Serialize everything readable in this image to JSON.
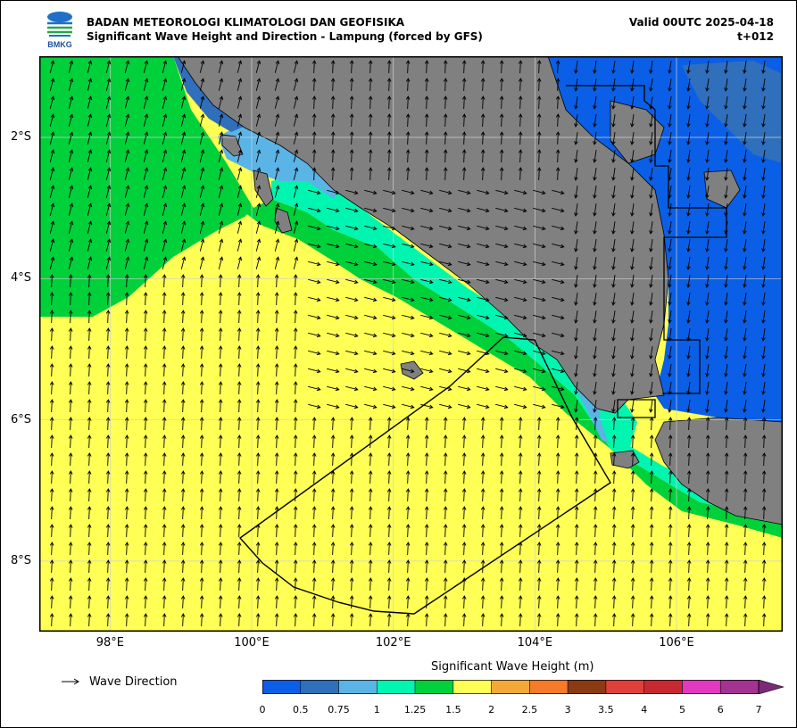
{
  "header": {
    "logo_text": "BMKG",
    "title_line1": "BADAN METEOROLOGI KLIMATOLOGI DAN GEOFISIKA",
    "title_line2": "Significant Wave Height and Direction - Lampung (forced by GFS)",
    "valid_line1": "Valid 00UTC 2025-04-18",
    "valid_line2": "t+012"
  },
  "map": {
    "lon_range": [
      97.0,
      107.5
    ],
    "lat_range": [
      -9.0,
      -0.85
    ],
    "grid": true,
    "land_color": "#808080",
    "x_ticks": [
      {
        "lon": 98,
        "label": "98°E"
      },
      {
        "lon": 100,
        "label": "100°E"
      },
      {
        "lon": 102,
        "label": "102°E"
      },
      {
        "lon": 104,
        "label": "104°E"
      },
      {
        "lon": 106,
        "label": "106°E"
      }
    ],
    "y_ticks": [
      {
        "lat": -2,
        "label": "2°S"
      },
      {
        "lat": -4,
        "label": "4°S"
      },
      {
        "lat": -6,
        "label": "6°S"
      },
      {
        "lat": -8,
        "label": "8°S"
      }
    ]
  },
  "legend": {
    "arrow_label": "Wave Direction",
    "arrow_icon": "arrow-right-icon"
  },
  "colorbar": {
    "title": "Significant Wave Height (m)",
    "levels": [
      "0",
      "0.5",
      "0.75",
      "1",
      "1.25",
      "1.5",
      "2",
      "2.5",
      "3",
      "3.5",
      "4",
      "5",
      "6",
      "7"
    ],
    "colors": [
      "#0a5fe6",
      "#2f6fbc",
      "#5ab4e6",
      "#00f5b0",
      "#00d03a",
      "#ffff55",
      "#f5a83a",
      "#f57a2a",
      "#8b3b14",
      "#e0403a",
      "#c8282f",
      "#e03ac0",
      "#a43290"
    ],
    "extend_color": "#7a2a78"
  }
}
